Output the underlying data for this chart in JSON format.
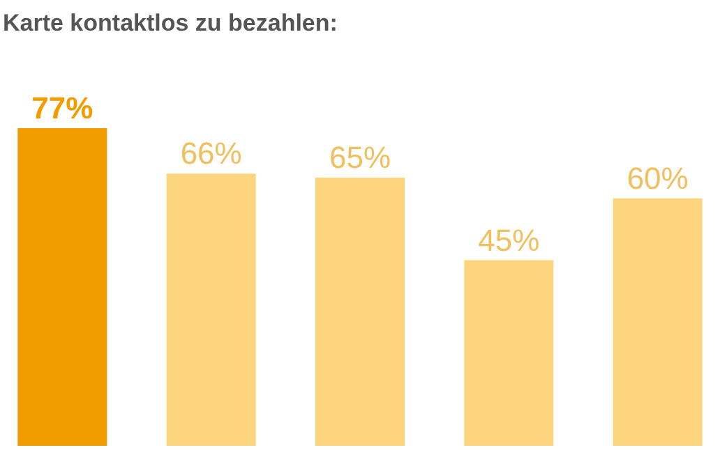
{
  "chart_data": {
    "type": "bar",
    "title": "Karte kontaktlos zu bezahlen:",
    "categories": [
      null,
      null,
      null,
      null,
      null
    ],
    "values": [
      77,
      66,
      65,
      45,
      60
    ],
    "colors": [
      "#f29c00",
      "#fdd57e",
      "#fdd57e",
      "#fdd57e",
      "#fdd57e"
    ],
    "value_labels": [
      "77%",
      "66%",
      "65%",
      "45%",
      "60%"
    ]
  }
}
